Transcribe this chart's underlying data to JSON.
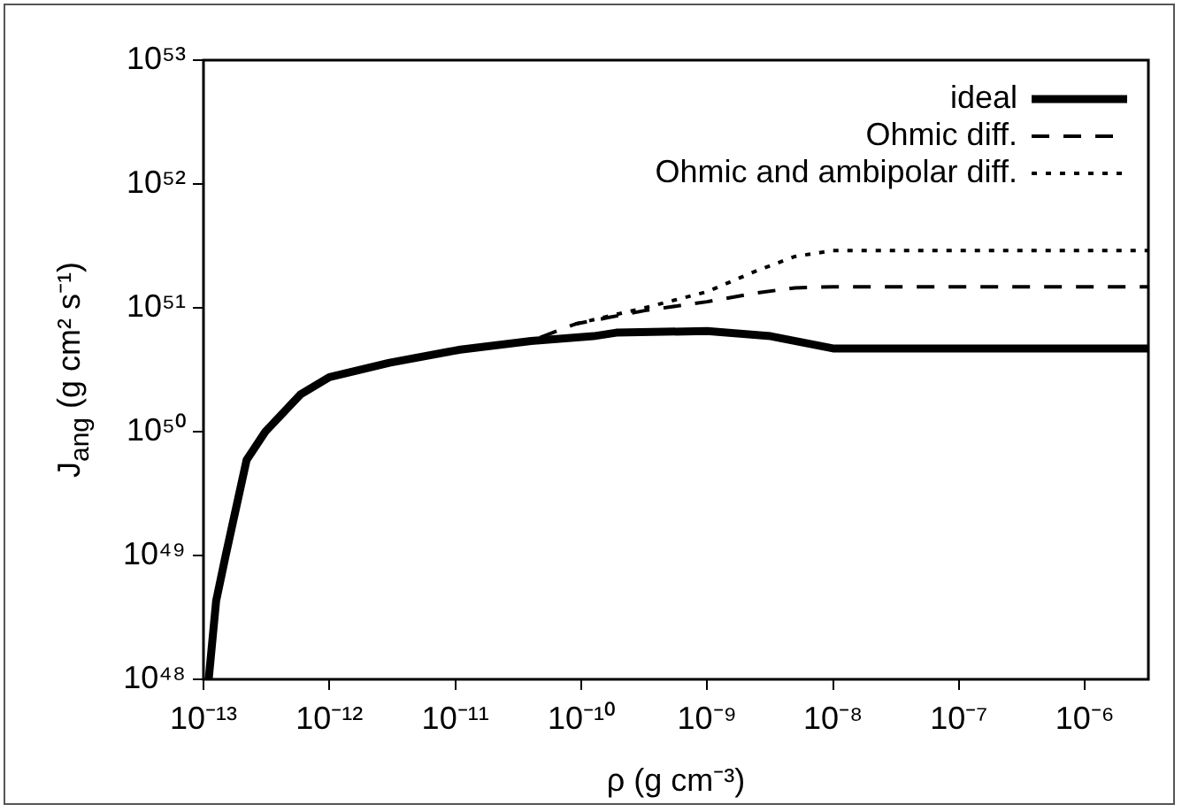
{
  "chart_data": {
    "type": "line",
    "xlabel": "ρ (g cm⁻³)",
    "ylabel": "J$_{ang}$ (g cm² s⁻¹)",
    "log": "xy",
    "grid": false,
    "legend": "top right",
    "marker": "none",
    "xlim": [
      1e-13,
      3.2e-06
    ],
    "xticks": [
      {
        "value": 1e-13,
        "label": "10⁻¹³"
      },
      {
        "value": 1e-12,
        "label": "10⁻¹²"
      },
      {
        "value": 1e-11,
        "label": "10⁻¹¹"
      },
      {
        "value": 1e-10,
        "label": "10⁻¹⁰"
      },
      {
        "value": 1e-09,
        "label": "10⁻⁹"
      },
      {
        "value": 1e-08,
        "label": "10⁻⁸"
      },
      {
        "value": 1e-07,
        "label": "10⁻⁷"
      },
      {
        "value": 1e-06,
        "label": "10⁻⁶"
      }
    ],
    "ylim": [
      1e+48,
      1e+53
    ],
    "yticks": [
      {
        "value": 1e+48,
        "label": "10⁴⁸"
      },
      {
        "value": 1e+49,
        "label": "10⁴⁹"
      },
      {
        "value": 1e+50,
        "label": "10⁵⁰"
      },
      {
        "value": 1e+51,
        "label": "10⁵¹"
      },
      {
        "value": 1e+52,
        "label": "10⁵²"
      },
      {
        "value": 1e+53,
        "label": "10⁵³"
      }
    ],
    "series": [
      {
        "name": "ideal",
        "color": "#000000",
        "line_style": "solid",
        "x": [
          1.1e-13,
          1.26e-13,
          1.5e-13,
          2.2e-13,
          3.1e-13,
          5.9e-13,
          1e-12,
          3e-12,
          1.1e-11,
          4e-11,
          1.25e-10,
          1.9e-10,
          1e-09,
          3.2e-09,
          1e-08,
          3.2e-06
        ],
        "values": [
          1e+48,
          4.3e+48,
          1e+49,
          5.9e+49,
          1e+50,
          2e+50,
          2.75e+50,
          3.6e+50,
          4.6e+50,
          5.4e+50,
          5.9e+50,
          6.3e+50,
          6.5e+50,
          5.9e+50,
          4.7e+50,
          4.7e+50
        ]
      },
      {
        "name": "Ohmic diff.",
        "color": "#000000",
        "line_style": "dashed",
        "x": [
          1.26e-13,
          1.5e-13,
          2.2e-13,
          3.1e-13,
          5.9e-13,
          1e-12,
          3e-12,
          1.1e-11,
          4e-11,
          9e-11,
          1.6e-10,
          3.2e-10,
          1e-09,
          2.5e-09,
          5e-09,
          1e-08,
          3.2e-06
        ],
        "values": [
          4.3e+48,
          1e+49,
          5.9e+49,
          1e+50,
          2e+50,
          2.75e+50,
          3.6e+50,
          4.6e+50,
          5.4e+50,
          7.4e+50,
          8.3e+50,
          9.5e+50,
          1.12e+51,
          1.32e+51,
          1.45e+51,
          1.48e+51,
          1.48e+51
        ]
      },
      {
        "name": "Ohmic and ambipolar diff.",
        "color": "#000000",
        "line_style": "dotted",
        "x": [
          9e-11,
          1.6e-10,
          3.2e-10,
          1e-09,
          2.5e-09,
          5e-09,
          1e-08,
          3.2e-06
        ],
        "values": [
          7.4e+50,
          8.5e+50,
          1e+51,
          1.35e+51,
          2e+51,
          2.6e+51,
          2.9e+51,
          2.9e+51
        ]
      }
    ]
  }
}
